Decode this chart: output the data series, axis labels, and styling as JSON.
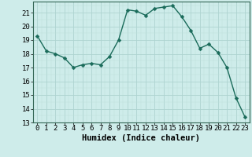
{
  "x": [
    0,
    1,
    2,
    3,
    4,
    5,
    6,
    7,
    8,
    9,
    10,
    11,
    12,
    13,
    14,
    15,
    16,
    17,
    18,
    19,
    20,
    21,
    22,
    23
  ],
  "y": [
    19.3,
    18.2,
    18.0,
    17.7,
    17.0,
    17.2,
    17.3,
    17.2,
    17.8,
    19.0,
    21.2,
    21.1,
    20.8,
    21.3,
    21.4,
    21.5,
    20.7,
    19.7,
    18.4,
    18.7,
    18.1,
    17.0,
    14.8,
    13.4
  ],
  "line_color": "#1a6b5a",
  "marker": "D",
  "marker_size": 2.5,
  "bg_color": "#ceecea",
  "grid_color_major": "#aed4d0",
  "grid_color_minor": "#beded9",
  "xlabel": "Humidex (Indice chaleur)",
  "xlim": [
    -0.5,
    23.5
  ],
  "ylim": [
    13,
    21.8
  ],
  "yticks": [
    13,
    14,
    15,
    16,
    17,
    18,
    19,
    20,
    21
  ],
  "xticks": [
    0,
    1,
    2,
    3,
    4,
    5,
    6,
    7,
    8,
    9,
    10,
    11,
    12,
    13,
    14,
    15,
    16,
    17,
    18,
    19,
    20,
    21,
    22,
    23
  ],
  "label_fontsize": 7.5,
  "tick_fontsize": 6.5
}
